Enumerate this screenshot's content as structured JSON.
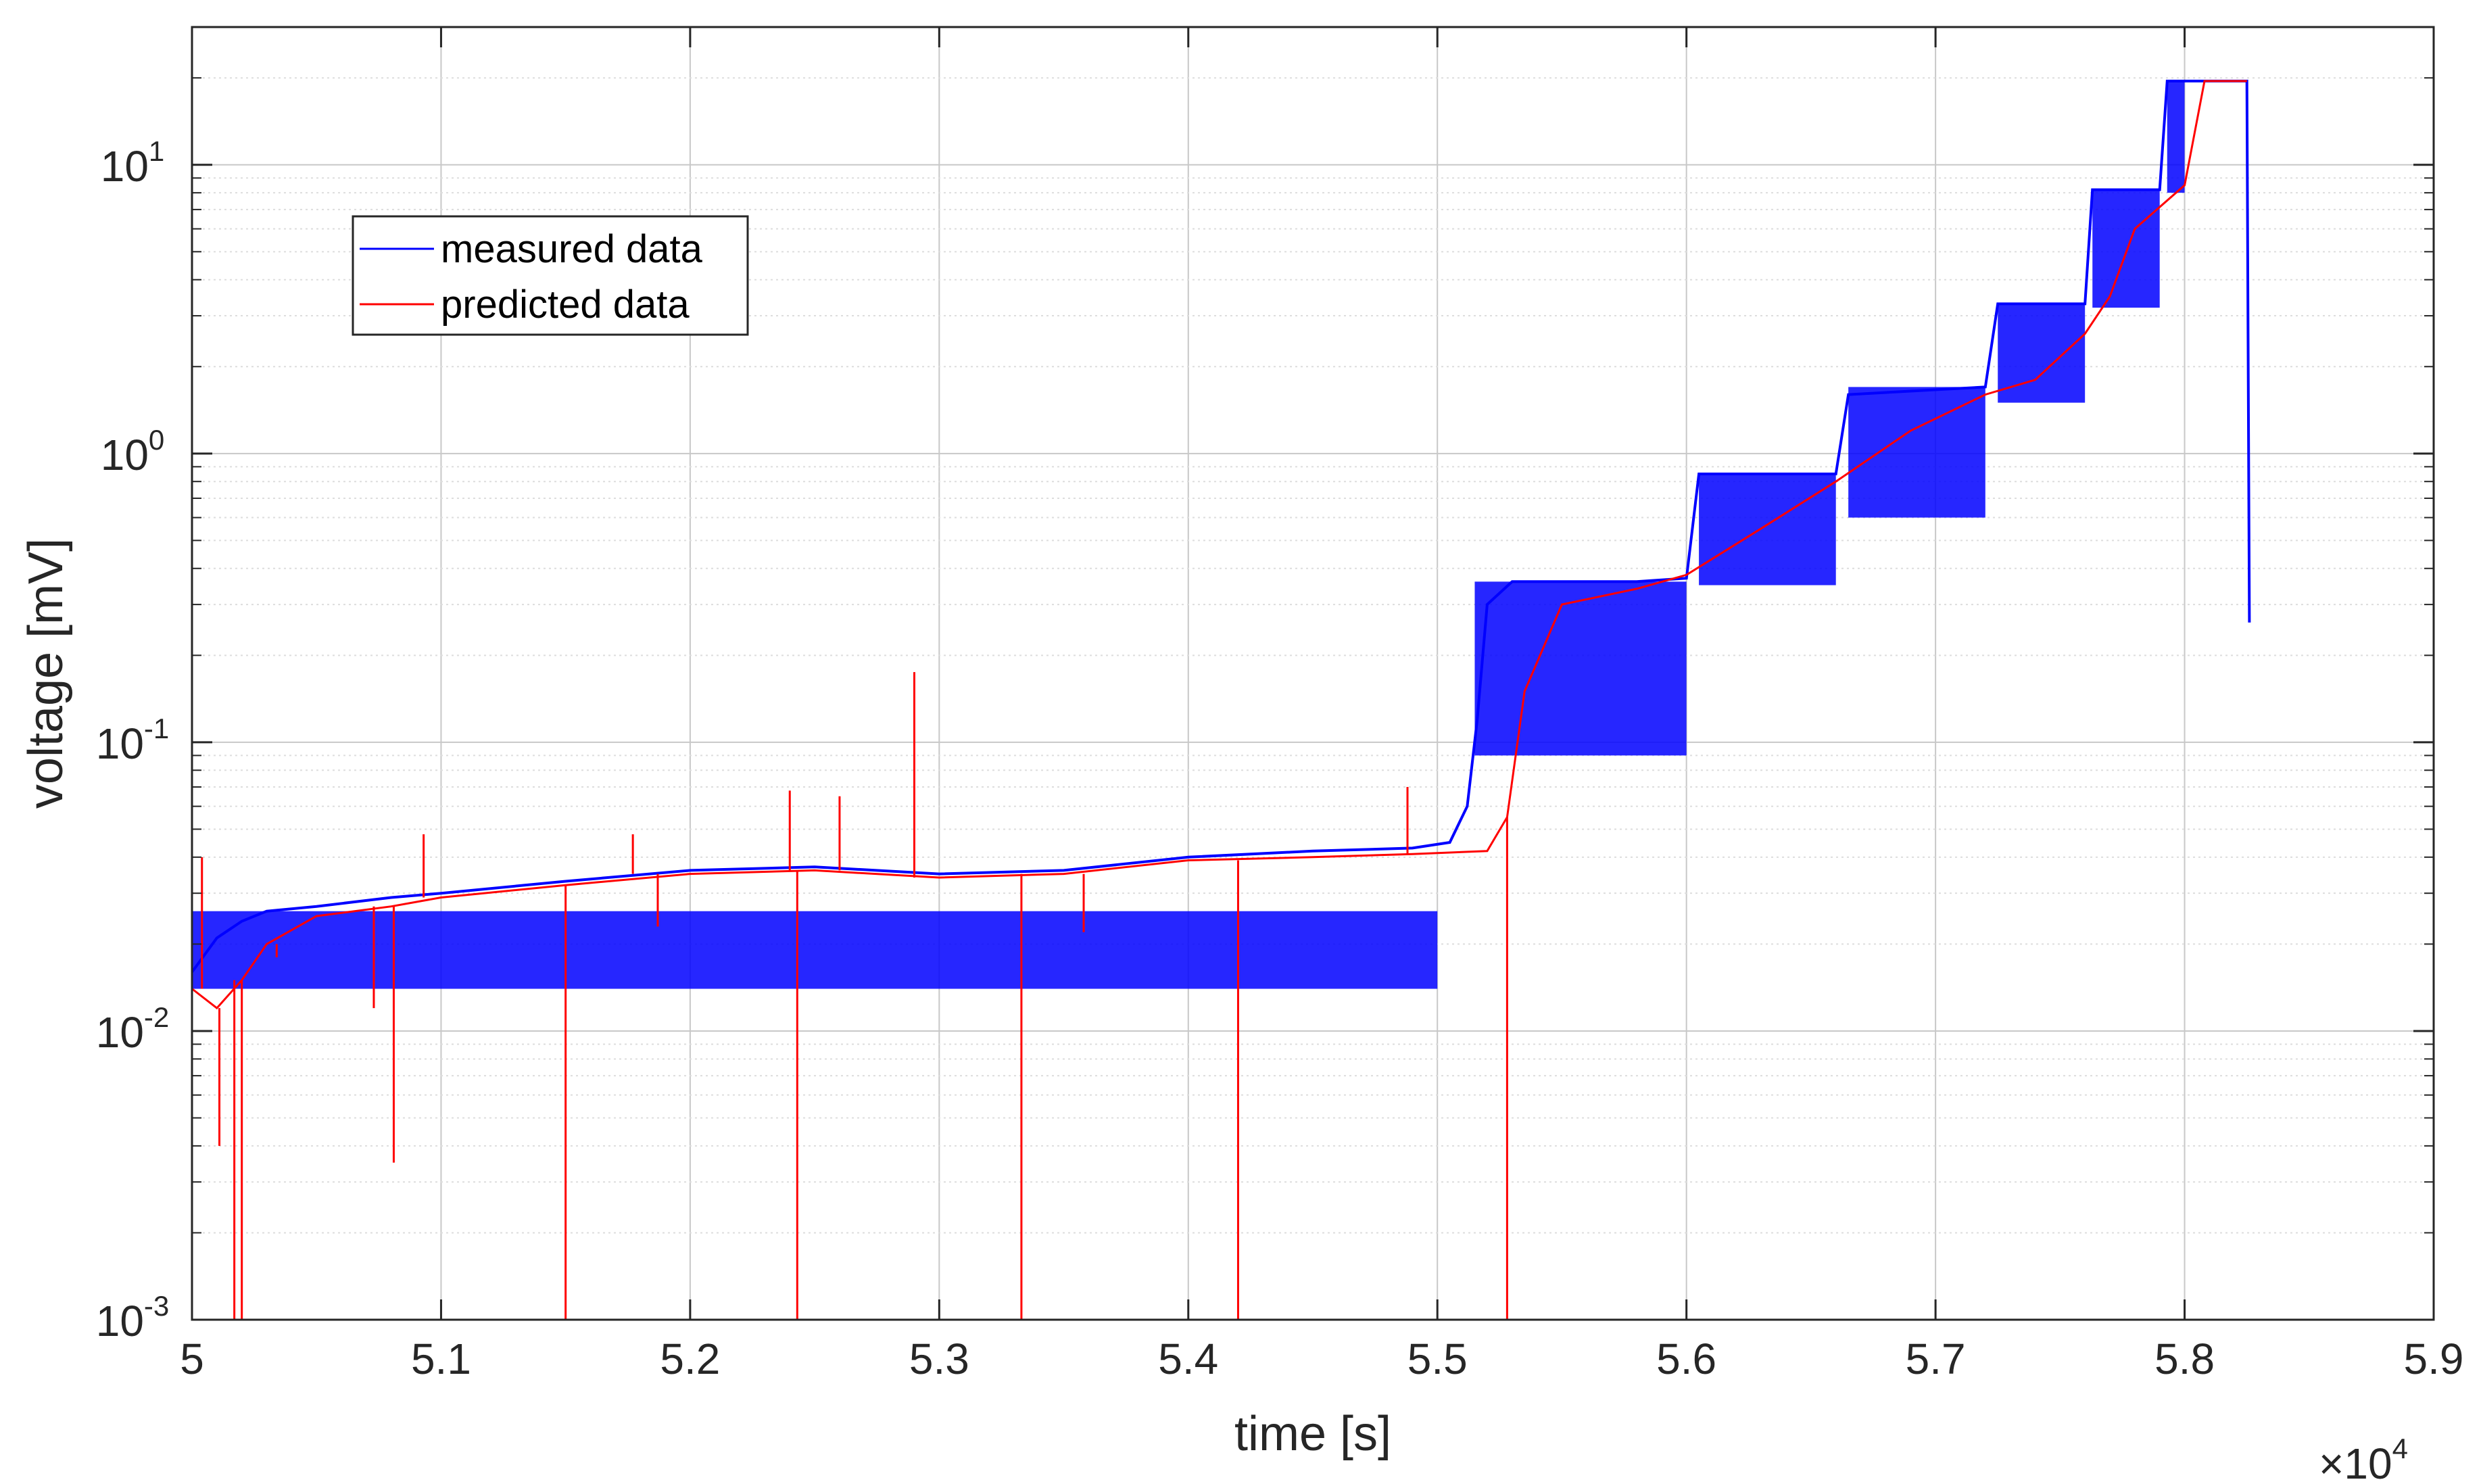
{
  "chart_data": {
    "type": "line",
    "title": "",
    "xlabel": "time [s]",
    "ylabel": "voltage [mV]",
    "x_exponent_label": "×10",
    "x_exponent_power": "4",
    "x_scale_multiplier": 10000,
    "xlim": [
      5.0,
      5.9
    ],
    "ylim": [
      0.001,
      30
    ],
    "yscale": "log",
    "grid": true,
    "legend_position": "top-left",
    "x_ticks": [
      "5",
      "5.1",
      "5.2",
      "5.3",
      "5.4",
      "5.5",
      "5.6",
      "5.7",
      "5.8",
      "5.9"
    ],
    "x_tick_values": [
      5.0,
      5.1,
      5.2,
      5.3,
      5.4,
      5.5,
      5.6,
      5.7,
      5.8,
      5.9
    ],
    "y_ticks": [
      {
        "base": "10",
        "exp": "-3",
        "value": 0.001
      },
      {
        "base": "10",
        "exp": "-2",
        "value": 0.01
      },
      {
        "base": "10",
        "exp": "-1",
        "value": 0.1
      },
      {
        "base": "10",
        "exp": "0",
        "value": 1
      },
      {
        "base": "10",
        "exp": "1",
        "value": 10
      }
    ],
    "series": [
      {
        "name": "measured data",
        "color": "#0000ff",
        "points": [
          [
            5.0,
            0.016
          ],
          [
            5.01,
            0.021
          ],
          [
            5.02,
            0.024
          ],
          [
            5.03,
            0.026
          ],
          [
            5.05,
            0.027
          ],
          [
            5.08,
            0.029
          ],
          [
            5.1,
            0.03
          ],
          [
            5.15,
            0.033
          ],
          [
            5.2,
            0.036
          ],
          [
            5.25,
            0.037
          ],
          [
            5.3,
            0.035
          ],
          [
            5.35,
            0.036
          ],
          [
            5.4,
            0.04
          ],
          [
            5.45,
            0.042
          ],
          [
            5.49,
            0.043
          ],
          [
            5.505,
            0.045
          ],
          [
            5.512,
            0.06
          ],
          [
            5.516,
            0.12
          ],
          [
            5.52,
            0.3
          ],
          [
            5.53,
            0.36
          ],
          [
            5.58,
            0.36
          ],
          [
            5.6,
            0.37
          ],
          [
            5.605,
            0.85
          ],
          [
            5.66,
            0.85
          ],
          [
            5.665,
            1.6
          ],
          [
            5.72,
            1.7
          ],
          [
            5.725,
            3.3
          ],
          [
            5.76,
            3.3
          ],
          [
            5.763,
            8.2
          ],
          [
            5.79,
            8.2
          ],
          [
            5.793,
            19.5
          ],
          [
            5.825,
            19.5
          ],
          [
            5.826,
            0.26
          ]
        ],
        "band": [
          {
            "from": 5.0,
            "to": 5.5,
            "low": 0.014,
            "high": 0.026
          },
          {
            "from": 5.515,
            "to": 5.6,
            "low": 0.09,
            "high": 0.36
          },
          {
            "from": 5.605,
            "to": 5.66,
            "low": 0.35,
            "high": 0.85
          },
          {
            "from": 5.665,
            "to": 5.72,
            "low": 0.6,
            "high": 1.7
          },
          {
            "from": 5.725,
            "to": 5.76,
            "low": 1.5,
            "high": 3.3
          },
          {
            "from": 5.763,
            "to": 5.79,
            "low": 3.2,
            "high": 8.2
          },
          {
            "from": 5.793,
            "to": 5.8,
            "low": 8.0,
            "high": 19.5
          }
        ]
      },
      {
        "name": "predicted data",
        "color": "#ff0000",
        "points": [
          [
            5.0,
            0.014
          ],
          [
            5.01,
            0.012
          ],
          [
            5.02,
            0.015
          ],
          [
            5.03,
            0.02
          ],
          [
            5.05,
            0.025
          ],
          [
            5.08,
            0.027
          ],
          [
            5.1,
            0.029
          ],
          [
            5.15,
            0.032
          ],
          [
            5.2,
            0.035
          ],
          [
            5.25,
            0.036
          ],
          [
            5.3,
            0.034
          ],
          [
            5.35,
            0.035
          ],
          [
            5.4,
            0.039
          ],
          [
            5.45,
            0.04
          ],
          [
            5.49,
            0.041
          ],
          [
            5.52,
            0.042
          ],
          [
            5.528,
            0.055
          ],
          [
            5.535,
            0.15
          ],
          [
            5.55,
            0.3
          ],
          [
            5.58,
            0.34
          ],
          [
            5.6,
            0.38
          ],
          [
            5.63,
            0.55
          ],
          [
            5.66,
            0.8
          ],
          [
            5.69,
            1.2
          ],
          [
            5.72,
            1.6
          ],
          [
            5.74,
            1.8
          ],
          [
            5.76,
            2.6
          ],
          [
            5.77,
            3.5
          ],
          [
            5.78,
            6.0
          ],
          [
            5.8,
            8.5
          ],
          [
            5.808,
            19.5
          ],
          [
            5.825,
            19.5
          ]
        ],
        "spikes": [
          [
            5.004,
            0.04
          ],
          [
            5.011,
            0.004
          ],
          [
            5.017,
            0.001
          ],
          [
            5.02,
            0.001
          ],
          [
            5.034,
            0.018
          ],
          [
            5.073,
            0.012
          ],
          [
            5.081,
            0.0035
          ],
          [
            5.093,
            0.048
          ],
          [
            5.15,
            0.001
          ],
          [
            5.177,
            0.048
          ],
          [
            5.187,
            0.023
          ],
          [
            5.24,
            0.068
          ],
          [
            5.243,
            0.001
          ],
          [
            5.26,
            0.065
          ],
          [
            5.29,
            0.175
          ],
          [
            5.333,
            0.001
          ],
          [
            5.358,
            0.022
          ],
          [
            5.42,
            0.001
          ],
          [
            5.488,
            0.07
          ],
          [
            5.528,
            0.001
          ]
        ]
      }
    ]
  }
}
